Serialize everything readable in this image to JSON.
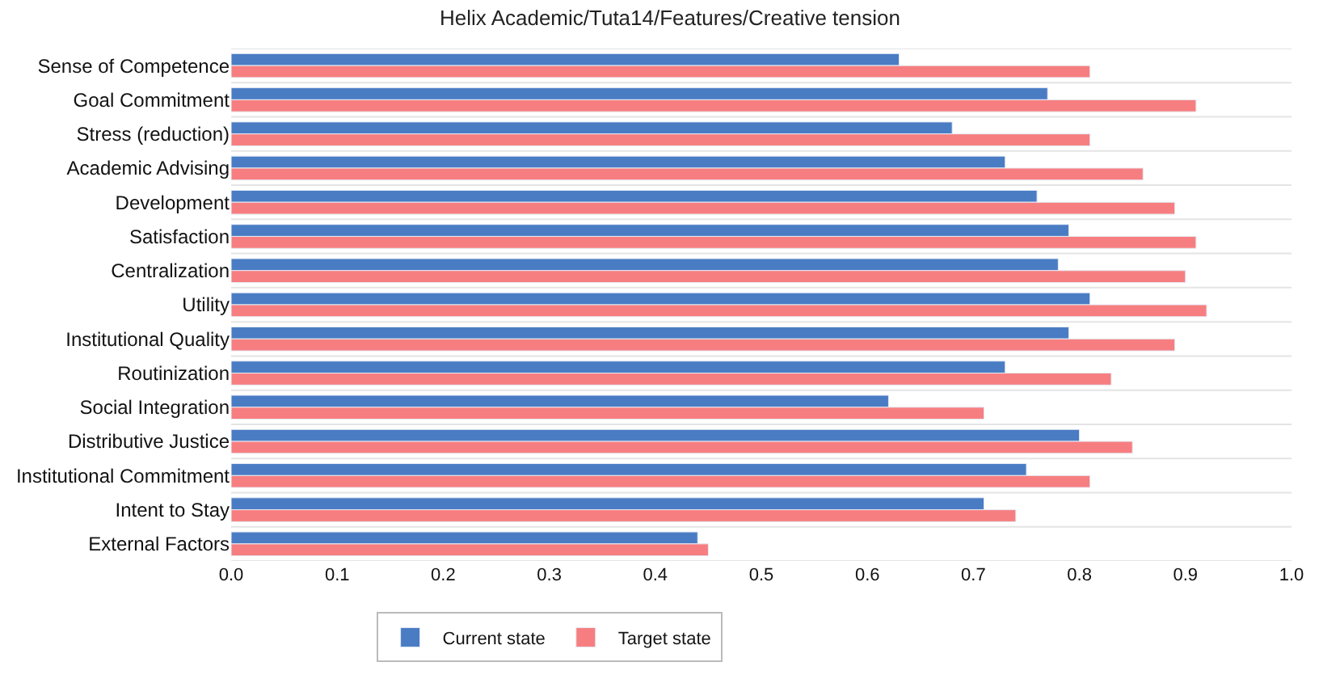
{
  "chart_data": {
    "type": "bar",
    "orientation": "horizontal",
    "title": "Helix Academic/Tuta14/Features/Creative tension",
    "categories": [
      "Sense of Competence",
      "Goal Commitment",
      "Stress (reduction)",
      "Academic Advising",
      "Development",
      "Satisfaction",
      "Centralization",
      "Utility",
      "Institutional Quality",
      "Routinization",
      "Social Integration",
      "Distributive Justice",
      "Institutional Commitment",
      "Intent to Stay",
      "External Factors"
    ],
    "series": [
      {
        "name": "Current state",
        "color": "#4a7cc4",
        "values": [
          0.63,
          0.77,
          0.68,
          0.73,
          0.76,
          0.79,
          0.78,
          0.81,
          0.79,
          0.73,
          0.62,
          0.8,
          0.75,
          0.71,
          0.44
        ]
      },
      {
        "name": "Target state",
        "color": "#f77e80",
        "values": [
          0.81,
          0.91,
          0.81,
          0.86,
          0.89,
          0.91,
          0.9,
          0.92,
          0.89,
          0.83,
          0.71,
          0.85,
          0.81,
          0.74,
          0.45
        ]
      }
    ],
    "xlim": [
      0,
      1.0
    ],
    "xticks": [
      {
        "value": 0,
        "label": "0.0"
      },
      0.1,
      0.2,
      0.3,
      0.4,
      0.5,
      0.6,
      0.7,
      0.8,
      0.9,
      {
        "value": 1.0,
        "label": "1.0"
      }
    ],
    "grid": false,
    "legend": "bottom"
  }
}
